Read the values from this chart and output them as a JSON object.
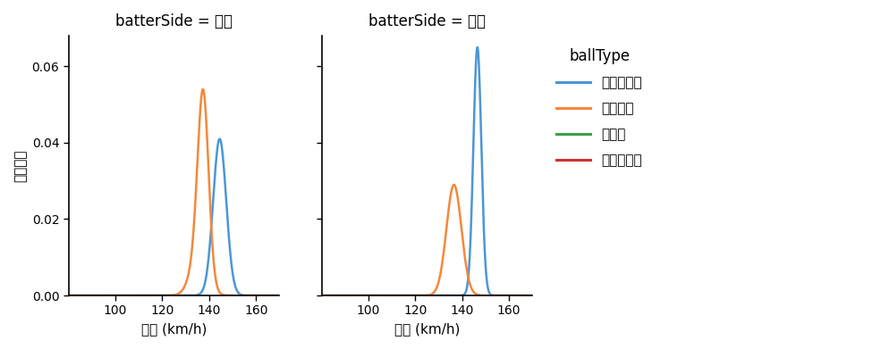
{
  "title_left": "batterSide = 右打",
  "title_right": "batterSide = 左打",
  "xlabel": "球速 (km/h)",
  "ylabel": "確率密度",
  "legend_title": "ballType",
  "legend_entries": [
    "ストレート",
    "フォーク",
    "カーブ",
    "スライダー"
  ],
  "colors": {
    "ストレート": "#4c96d7",
    "フォーク": "#f5883a",
    "カーブ": "#3da04e",
    "スライダー": "#cc3333"
  },
  "xlim": [
    80,
    170
  ],
  "ylim": [
    0,
    0.068
  ],
  "xticks": [
    100,
    120,
    140,
    160
  ],
  "yticks": [
    0.0,
    0.02,
    0.04,
    0.06
  ],
  "right_curves": {
    "ストレート": [
      {
        "mean": 144.5,
        "std": 2.8,
        "weight": 1.0
      }
    ],
    "フォーク": [
      {
        "mean": 137.5,
        "std": 2.3,
        "weight": 0.75
      },
      {
        "mean": 135.5,
        "std": 3.5,
        "weight": 0.25
      }
    ]
  },
  "left_curves": {
    "ストレート": [
      {
        "mean": 146.5,
        "std": 1.7,
        "weight": 1.0
      }
    ],
    "フォーク": [
      {
        "mean": 136.5,
        "std": 3.2,
        "weight": 1.0
      }
    ]
  },
  "right_peaks": {
    "ストレート": 0.041,
    "フォーク": 0.054
  },
  "left_peaks": {
    "ストレート": 0.065,
    "フォーク": 0.029
  },
  "background_color": "#ffffff",
  "figsize": [
    9.95,
    3.91
  ],
  "dpi": 100
}
